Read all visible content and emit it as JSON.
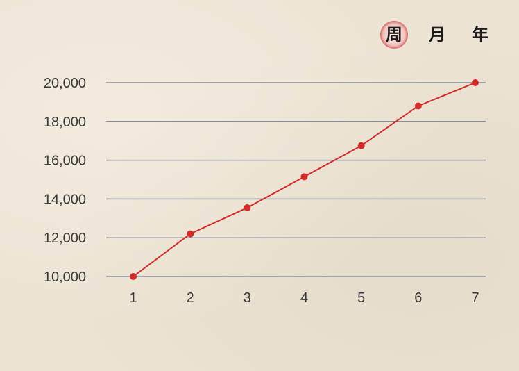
{
  "tabs": [
    {
      "label": "周",
      "active": true
    },
    {
      "label": "月",
      "active": false
    },
    {
      "label": "年",
      "active": false
    }
  ],
  "colors": {
    "line": "#d42b2b",
    "grid": "#8a8f99",
    "accent": "#c63c3a"
  },
  "chart_data": {
    "type": "line",
    "x": [
      1,
      2,
      3,
      4,
      5,
      6,
      7
    ],
    "values": [
      10000,
      12200,
      13550,
      15150,
      16750,
      18800,
      20000
    ],
    "xlabel": "",
    "ylabel": "",
    "ylim": [
      10000,
      20000
    ],
    "yticks": [
      10000,
      12000,
      14000,
      16000,
      18000,
      20000
    ],
    "ytick_labels": [
      "10,000",
      "12,000",
      "14,000",
      "16,000",
      "18,000",
      "20,000"
    ],
    "xtick_labels": [
      "1",
      "2",
      "3",
      "4",
      "5",
      "6",
      "7"
    ],
    "grid": true,
    "legend": false
  }
}
